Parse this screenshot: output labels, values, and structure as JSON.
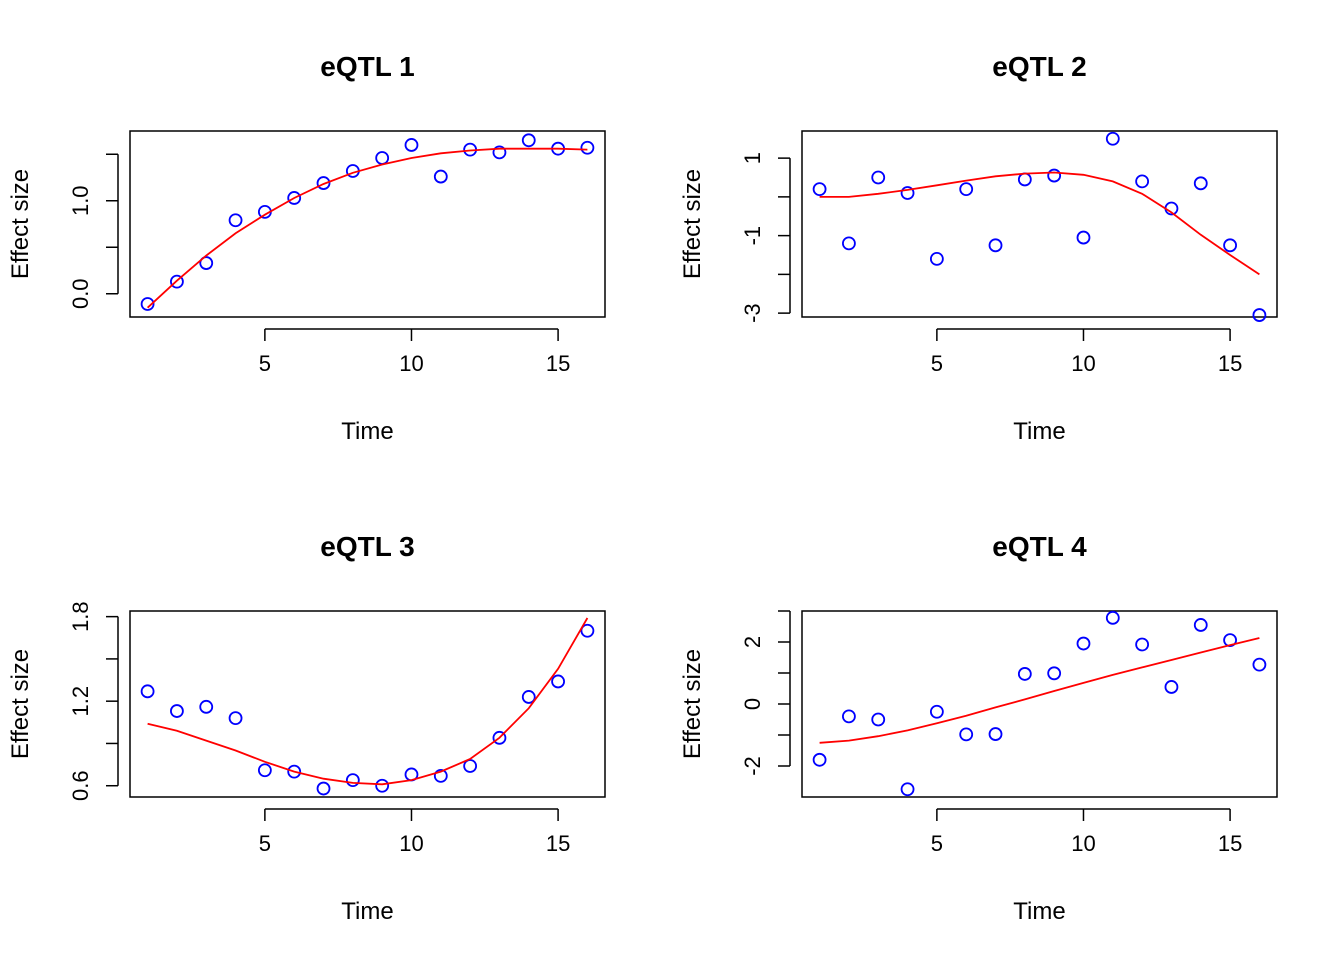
{
  "chart_data": [
    {
      "type": "scatter",
      "title": "eQTL 1",
      "xlabel": "Time",
      "ylabel": "Effect size",
      "xlim": [
        0.4,
        16.6
      ],
      "ylim": [
        -0.25,
        1.75
      ],
      "xticks": [
        5,
        10,
        15
      ],
      "yticks": [
        0.0,
        0.5,
        1.0,
        1.5
      ],
      "ytick_labels": [
        "0.0",
        "",
        "1.0",
        ""
      ],
      "grid": false,
      "series": [
        {
          "kind": "points",
          "color": "#0000ff",
          "x": [
            1,
            2,
            3,
            4,
            5,
            6,
            7,
            8,
            9,
            10,
            11,
            12,
            13,
            14,
            15,
            16
          ],
          "y": [
            -0.11,
            0.13,
            0.33,
            0.79,
            0.88,
            1.03,
            1.19,
            1.32,
            1.46,
            1.6,
            1.26,
            1.55,
            1.52,
            1.65,
            1.56,
            1.57
          ]
        },
        {
          "kind": "line",
          "color": "#ff0000",
          "x": [
            1,
            2,
            3,
            4,
            5,
            6,
            7,
            8,
            9,
            10,
            11,
            12,
            13,
            14,
            15,
            16
          ],
          "y": [
            -0.15,
            0.14,
            0.41,
            0.65,
            0.85,
            1.03,
            1.18,
            1.3,
            1.39,
            1.46,
            1.51,
            1.54,
            1.56,
            1.56,
            1.56,
            1.55
          ]
        }
      ]
    },
    {
      "type": "scatter",
      "title": "eQTL 2",
      "xlabel": "Time",
      "ylabel": "Effect size",
      "xlim": [
        0.4,
        16.6
      ],
      "ylim": [
        -3.1,
        1.7
      ],
      "xticks": [
        5,
        10,
        15
      ],
      "yticks": [
        -3,
        -2,
        -1,
        0,
        1
      ],
      "ytick_labels": [
        "-3",
        "",
        "-1",
        "",
        "1"
      ],
      "grid": false,
      "series": [
        {
          "kind": "points",
          "color": "#0000ff",
          "x": [
            1,
            2,
            3,
            4,
            5,
            6,
            7,
            8,
            9,
            10,
            11,
            12,
            13,
            14,
            15,
            16
          ],
          "y": [
            0.2,
            -1.2,
            0.5,
            0.1,
            -1.6,
            0.2,
            -1.25,
            0.45,
            0.55,
            -1.05,
            1.5,
            0.4,
            -0.3,
            0.35,
            -1.25,
            -3.05
          ]
        },
        {
          "kind": "line",
          "color": "#ff0000",
          "x": [
            1,
            2,
            3,
            4,
            5,
            6,
            7,
            8,
            9,
            10,
            11,
            12,
            13,
            14,
            15,
            16
          ],
          "y": [
            0.0,
            0.0,
            0.08,
            0.18,
            0.3,
            0.42,
            0.53,
            0.6,
            0.63,
            0.57,
            0.4,
            0.08,
            -0.4,
            -0.98,
            -1.5,
            -2.0
          ]
        }
      ]
    },
    {
      "type": "scatter",
      "title": "eQTL 3",
      "xlabel": "Time",
      "ylabel": "Effect size",
      "xlim": [
        0.4,
        16.6
      ],
      "ylim": [
        0.52,
        1.84
      ],
      "xticks": [
        5,
        10,
        15
      ],
      "yticks": [
        0.6,
        0.9,
        1.2,
        1.5,
        1.8
      ],
      "ytick_labels": [
        "0.6",
        "",
        "1.2",
        "",
        "1.8"
      ],
      "grid": false,
      "series": [
        {
          "kind": "points",
          "color": "#0000ff",
          "x": [
            1,
            2,
            3,
            4,
            5,
            6,
            7,
            8,
            9,
            10,
            11,
            12,
            13,
            14,
            15,
            16
          ],
          "y": [
            1.27,
            1.13,
            1.16,
            1.08,
            0.71,
            0.7,
            0.58,
            0.64,
            0.6,
            0.68,
            0.67,
            0.74,
            0.94,
            1.23,
            1.34,
            1.7
          ]
        },
        {
          "kind": "line",
          "color": "#ff0000",
          "x": [
            1,
            2,
            3,
            4,
            5,
            6,
            7,
            8,
            9,
            10,
            11,
            12,
            13,
            14,
            15,
            16
          ],
          "y": [
            1.04,
            0.99,
            0.92,
            0.85,
            0.77,
            0.7,
            0.65,
            0.62,
            0.61,
            0.64,
            0.7,
            0.79,
            0.94,
            1.15,
            1.43,
            1.79
          ]
        }
      ]
    },
    {
      "type": "scatter",
      "title": "eQTL 4",
      "xlabel": "Time",
      "ylabel": "Effect size",
      "xlim": [
        0.4,
        16.6
      ],
      "ylim": [
        -3.0,
        3.0
      ],
      "xticks": [
        5,
        10,
        15
      ],
      "yticks": [
        -2,
        -1,
        0,
        1,
        2,
        3
      ],
      "ytick_labels": [
        "-2",
        "",
        "0",
        "",
        "2",
        ""
      ],
      "grid": false,
      "series": [
        {
          "kind": "points",
          "color": "#0000ff",
          "x": [
            1,
            2,
            3,
            4,
            5,
            6,
            7,
            8,
            9,
            10,
            11,
            12,
            13,
            14,
            15,
            16
          ],
          "y": [
            -1.8,
            -0.4,
            -0.5,
            -2.75,
            -0.25,
            -0.98,
            -0.97,
            0.97,
            0.99,
            1.95,
            2.78,
            1.92,
            0.55,
            2.55,
            2.06,
            1.27
          ]
        },
        {
          "kind": "line",
          "color": "#ff0000",
          "x": [
            1,
            2,
            3,
            4,
            5,
            6,
            7,
            8,
            9,
            10,
            11,
            12,
            13,
            14,
            15,
            16
          ],
          "y": [
            -1.25,
            -1.18,
            -1.04,
            -0.85,
            -0.62,
            -0.38,
            -0.11,
            0.15,
            0.42,
            0.68,
            0.94,
            1.18,
            1.42,
            1.66,
            1.9,
            2.13
          ]
        }
      ]
    }
  ]
}
